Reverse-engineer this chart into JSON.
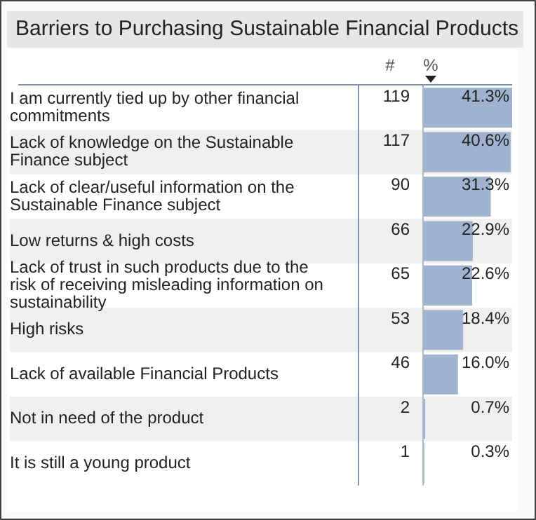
{
  "chart_data": {
    "type": "bar",
    "orientation": "horizontal",
    "title": "Barriers to Purchasing Sustainable Financial Products",
    "xlabel": "%",
    "categories": [
      "I am currently tied up by other financial commitments",
      "Lack of knowledge on the Sustainable Finance subject",
      "Lack of clear/useful information on the Sustainable Finance subject",
      "Low returns & high costs",
      "Lack of trust in such products due to the risk of receiving misleading information on sustainability",
      "High risks",
      "Lack of available Financial Products",
      "Not in need of the product",
      "It is still a young product"
    ],
    "values": [
      41.3,
      40.6,
      31.3,
      22.9,
      22.6,
      18.4,
      16.0,
      0.7,
      0.3
    ],
    "value_labels": [
      "41.3%",
      "40.6%",
      "31.3%",
      "22.9%",
      "22.6%",
      "18.4%",
      "16.0%",
      "0.7%",
      "0.3%"
    ],
    "color": "#9fb3d1",
    "xlim": [
      0,
      41.3
    ],
    "tick_labels": "y",
    "legend": false,
    "grid": false,
    "annotations": [
      "#",
      "119",
      "117",
      "90",
      "66",
      "65",
      "53",
      "46",
      "2",
      "1"
    ]
  }
}
